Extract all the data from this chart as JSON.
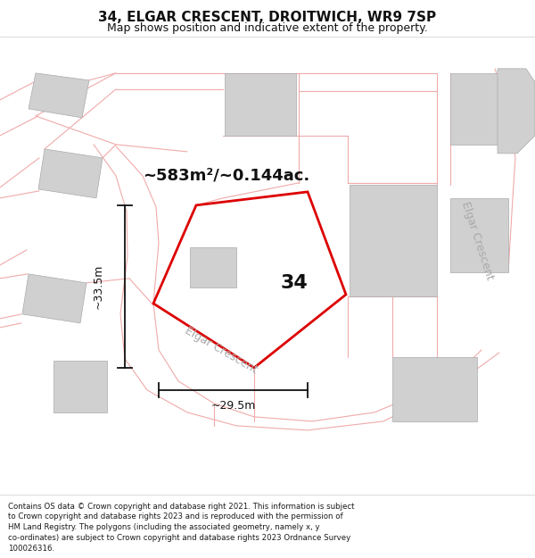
{
  "title": "34, ELGAR CRESCENT, DROITWICH, WR9 7SP",
  "subtitle": "Map shows position and indicative extent of the property.",
  "area_text": "~583m²/~0.144ac.",
  "width_label": "~29.5m",
  "height_label": "~33.5m",
  "property_number": "34",
  "street_diagonal": "Elgar Crescent",
  "street_right": "Elgar Crescent",
  "copyright_lines": [
    "Contains OS data © Crown copyright and database right 2021. This information is subject",
    "to Crown copyright and database rights 2023 and is reproduced with the permission of",
    "HM Land Registry. The polygons (including the associated geometry, namely x, y",
    "co-ordinates) are subject to Crown copyright and database rights 2023 Ordnance Survey",
    "100026316."
  ],
  "plot_color": "#dd0000",
  "building_fc": "#d0d0d0",
  "building_ec": "#aaaaaa",
  "road_color": "#f0aaaa",
  "dim_color": "#111111",
  "text_color": "#111111",
  "street_color": "#aaaaaa"
}
